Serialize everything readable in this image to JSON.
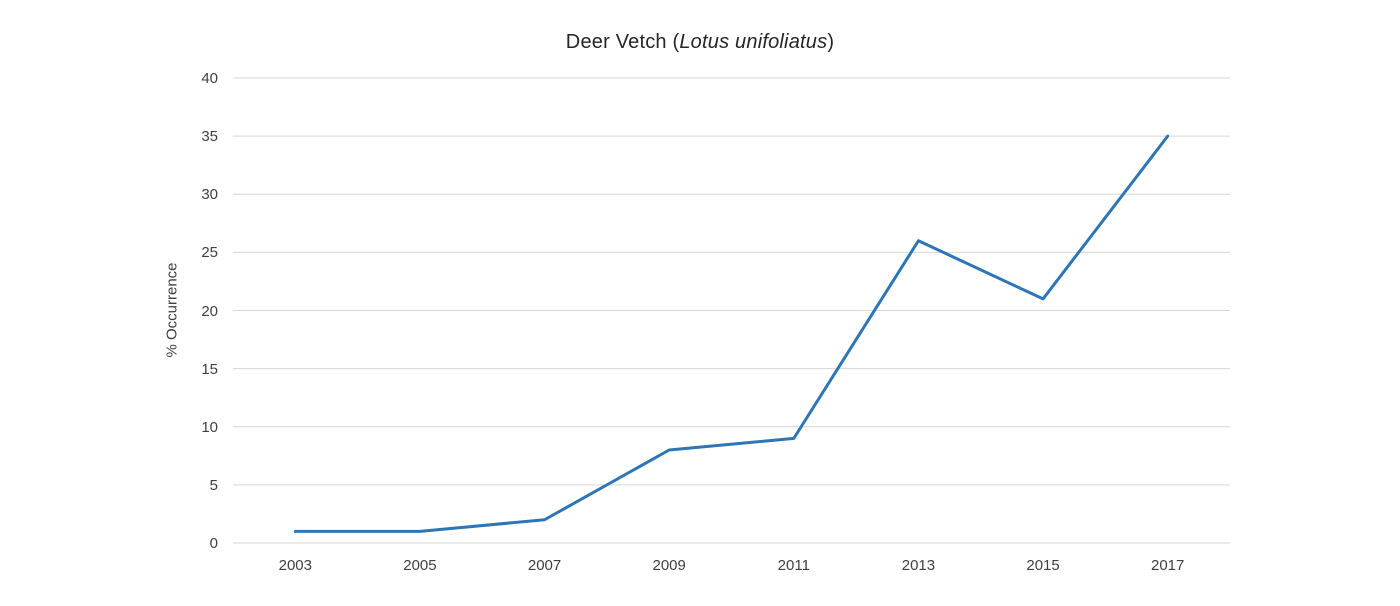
{
  "chart": {
    "title_prefix": "Deer Vetch (",
    "title_species": "Lotus unifoliatus",
    "title_suffix": ")",
    "y_axis_title": "% Occurrence"
  },
  "chart_data": {
    "type": "line",
    "title": "Deer Vetch (Lotus unifoliatus)",
    "categories": [
      "2003",
      "2005",
      "2007",
      "2009",
      "2011",
      "2013",
      "2015",
      "2017"
    ],
    "values": [
      1,
      1,
      2,
      8,
      9,
      26,
      21,
      35
    ],
    "xlabel": "",
    "ylabel": "% Occurrence",
    "ylim": [
      0,
      40
    ],
    "ytick_step": 5,
    "yticks": [
      0,
      5,
      10,
      15,
      20,
      25,
      30,
      35,
      40
    ],
    "grid": "horizontal",
    "legend": "none",
    "colors": {
      "line": "#2E75B6",
      "gridline": "#D6D6D6",
      "axis_text": "#404040",
      "title_text": "#262626",
      "background": "#FFFFFF"
    }
  }
}
